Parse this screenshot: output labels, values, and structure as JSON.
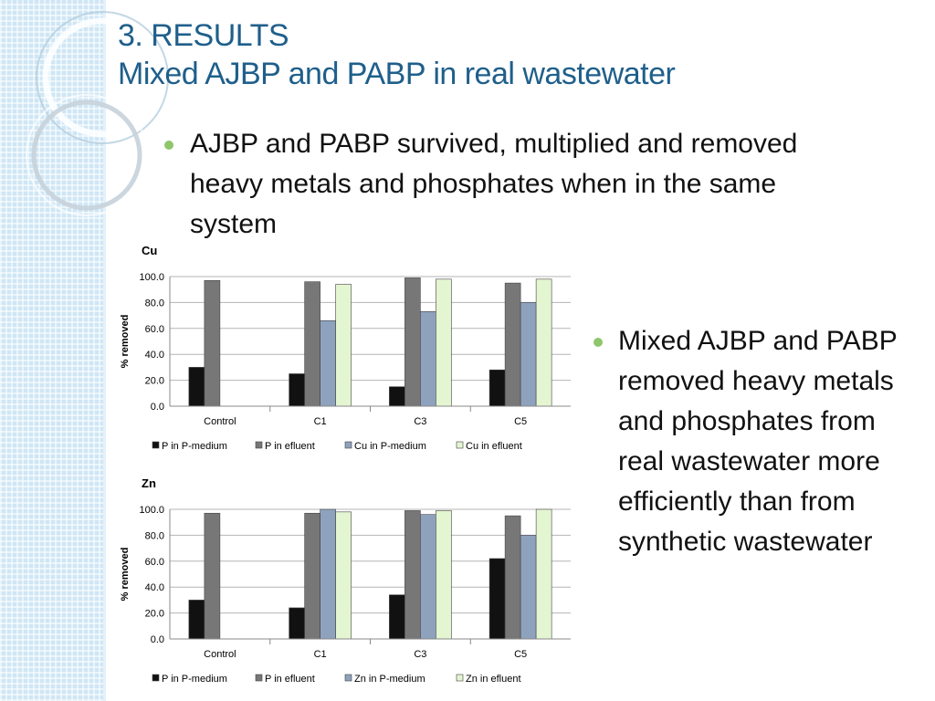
{
  "slide": {
    "title_line1": "3. RESULTS",
    "title_line2": "Mixed AJBP and PABP in real wastewater",
    "bullet1": "AJBP and PABP survived, multiplied and removed heavy metals and phosphates when in the same system",
    "bullet2": "Mixed AJBP and PABP removed heavy metals and phosphates from real wastewater more efficiently than from synthetic wastewater",
    "accent_color": "#1f5f8b",
    "bullet_color": "#8fc66b"
  },
  "chart_data": [
    {
      "type": "bar",
      "title": "Cu",
      "ylabel": "% removed",
      "xlabel": "",
      "ylim": [
        0,
        100
      ],
      "yticks": [
        "0.0",
        "20.0",
        "40.0",
        "60.0",
        "80.0",
        "100.0"
      ],
      "categories": [
        "Control",
        "C1",
        "C3",
        "C5"
      ],
      "grid": true,
      "legend": "bottom",
      "series": [
        {
          "name": "P in P-medium",
          "color": "#111111",
          "values": [
            30,
            25,
            15,
            28
          ]
        },
        {
          "name": "P in efluent",
          "color": "#777777",
          "values": [
            97,
            96,
            99,
            95
          ]
        },
        {
          "name": "Cu in P-medium",
          "color": "#8ea2bd",
          "values": [
            null,
            66,
            73,
            80
          ]
        },
        {
          "name": "Cu in efluent",
          "color": "#e4f5d2",
          "values": [
            null,
            94,
            98,
            98
          ]
        }
      ]
    },
    {
      "type": "bar",
      "title": "Zn",
      "ylabel": "% removed",
      "xlabel": "",
      "ylim": [
        0,
        100
      ],
      "yticks": [
        "0.0",
        "20.0",
        "40.0",
        "60.0",
        "80.0",
        "100.0"
      ],
      "categories": [
        "Control",
        "C1",
        "C3",
        "C5"
      ],
      "grid": true,
      "legend": "bottom",
      "series": [
        {
          "name": "P in P-medium",
          "color": "#111111",
          "values": [
            30,
            24,
            34,
            62
          ]
        },
        {
          "name": "P in efluent",
          "color": "#777777",
          "values": [
            97,
            97,
            99,
            95
          ]
        },
        {
          "name": "Zn in P-medium",
          "color": "#8ea2bd",
          "values": [
            null,
            100,
            96,
            80
          ]
        },
        {
          "name": "Zn in efluent",
          "color": "#e4f5d2",
          "values": [
            null,
            98,
            99,
            100
          ]
        }
      ]
    }
  ]
}
